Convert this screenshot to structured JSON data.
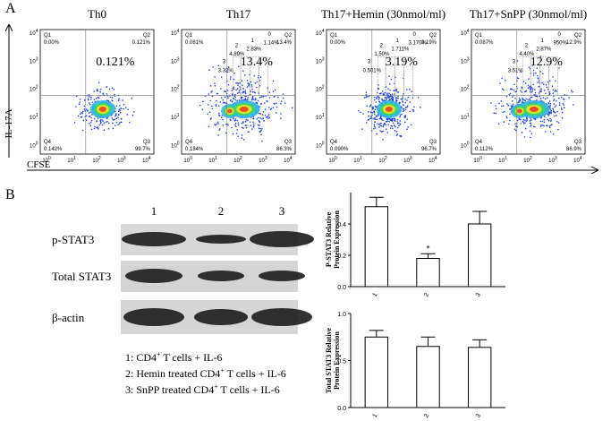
{
  "panel_a": {
    "label": "A",
    "y_label": "IL-17A",
    "x_label": "CFSE",
    "tick_base": "10",
    "tick_exponents": [
      "0",
      "1",
      "2",
      "3",
      "4"
    ],
    "plots": [
      {
        "title": "Th0",
        "big_pct": "0.121%",
        "quadrants": [
          {
            "name": "Q1",
            "pct": "0.00%"
          },
          {
            "name": "Q2",
            "pct": "0.121%"
          },
          {
            "name": "Q4",
            "pct": "0.142%"
          },
          {
            "name": "Q3",
            "pct": "99.7%"
          }
        ],
        "gates": []
      },
      {
        "title": "Th17",
        "big_pct": "13.4%",
        "quadrants": [
          {
            "name": "Q1",
            "pct": "0.081%"
          },
          {
            "name": "Q2",
            "pct": "13.4%"
          },
          {
            "name": "Q4",
            "pct": "0.184%"
          },
          {
            "name": "Q3",
            "pct": "86.3%"
          }
        ],
        "gates": [
          {
            "name": "0",
            "pct": "1.14%"
          },
          {
            "name": "1",
            "pct": "2.83%"
          },
          {
            "name": "2",
            "pct": "4.89%"
          },
          {
            "name": "3",
            "pct": "3.32%"
          }
        ]
      },
      {
        "title": "Th17+Hemin (30nmol/ml)",
        "big_pct": "3.19%",
        "quadrants": [
          {
            "name": "Q1",
            "pct": "0.00%"
          },
          {
            "name": "Q2",
            "pct": "3.19%"
          },
          {
            "name": "Q4",
            "pct": "0.090%"
          },
          {
            "name": "Q3",
            "pct": "96.7%"
          }
        ],
        "gates": [
          {
            "name": "0",
            "pct": "3.170%"
          },
          {
            "name": "1",
            "pct": "1.711%"
          },
          {
            "name": "2",
            "pct": "1.50%"
          },
          {
            "name": "3",
            "pct": "0.501%"
          }
        ]
      },
      {
        "title": "Th17+SnPP (30nmol/ml)",
        "big_pct": "12.9%",
        "quadrants": [
          {
            "name": "Q1",
            "pct": "0.087%"
          },
          {
            "name": "Q2",
            "pct": "12.9%"
          },
          {
            "name": "Q4",
            "pct": "0.112%"
          },
          {
            "name": "Q3",
            "pct": "86.9%"
          }
        ],
        "gates": [
          {
            "name": "0",
            "pct": "950%"
          },
          {
            "name": "1",
            "pct": "2.87%"
          },
          {
            "name": "2",
            "pct": "4.40%"
          },
          {
            "name": "3",
            "pct": "3.51%"
          }
        ]
      }
    ]
  },
  "panel_b": {
    "label": "B",
    "lanes": [
      "1",
      "2",
      "3"
    ],
    "rows": [
      "p-STAT3",
      "Total STAT3",
      "β-actin"
    ],
    "legend": [
      {
        "pre": "1: CD4",
        "sup": "+",
        "post": " T cells + IL-6"
      },
      {
        "pre": "2: Hemin treated CD4",
        "sup": "+",
        "post": " T cells + IL-6"
      },
      {
        "pre": "3: SnPP treated CD4",
        "sup": "+",
        "post": " T cells + IL-6"
      }
    ]
  },
  "chart_data": [
    {
      "type": "bar",
      "ylabel": [
        "P-STAT3 Relative",
        "Protein Expression"
      ],
      "categories": [
        "1",
        "2",
        "3"
      ],
      "values": [
        0.51,
        0.18,
        0.4
      ],
      "errors": [
        0.06,
        0.03,
        0.08
      ],
      "color": "#ffffff",
      "edgecolor": "#000000",
      "ylim": [
        0,
        0.6
      ],
      "yticks": [
        {
          "value": 0,
          "label": "0.0"
        },
        0.2,
        0.4
      ],
      "annotation": "*"
    },
    {
      "type": "bar",
      "ylabel": [
        "Total STAT3 Relative",
        "Protein Expression"
      ],
      "categories": [
        "1",
        "2",
        "3"
      ],
      "values": [
        0.75,
        0.65,
        0.64
      ],
      "errors": [
        0.07,
        0.1,
        0.08
      ],
      "color": "#ffffff",
      "edgecolor": "#000000",
      "ylim": [
        0,
        1
      ],
      "yticks": [
        {
          "value": 0,
          "label": "0.0"
        },
        0.5,
        {
          "value": 1,
          "label": "1.0"
        }
      ]
    }
  ]
}
